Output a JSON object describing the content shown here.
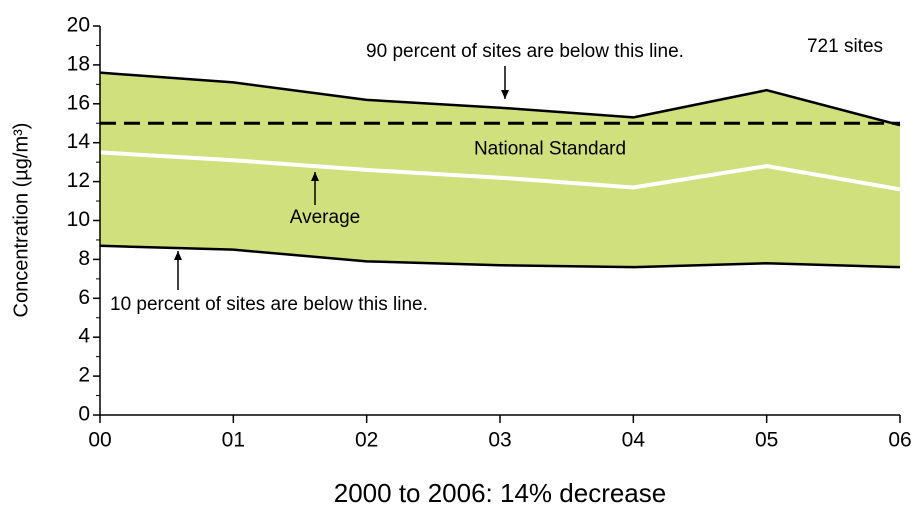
{
  "chart_data": {
    "type": "band-line",
    "title": "2000 to 2006: 14% decrease",
    "y_label": "Concentration (µg/m³)",
    "categories": [
      "00",
      "01",
      "02",
      "03",
      "04",
      "05",
      "06"
    ],
    "series": [
      {
        "color": "#000000",
        "values": [
          17.6,
          17.1,
          16.2,
          15.8,
          15.3,
          16.7,
          14.9
        ]
      },
      {
        "color": "#ffffff",
        "values": [
          13.5,
          13.1,
          12.6,
          12.2,
          11.7,
          12.8,
          11.6
        ]
      },
      {
        "color": "#000000",
        "values": [
          8.7,
          8.5,
          7.9,
          7.7,
          7.6,
          7.8,
          7.6
        ]
      }
    ],
    "band_color": "#cfe07c",
    "reference_lines": [
      {
        "value": 15,
        "label": "National Standard",
        "color": "#000000",
        "style": "dashed"
      }
    ],
    "annotations": [
      "90 percent of sites are below this line.",
      "Average",
      "10 percent of sites are below this line.",
      "721 sites"
    ],
    "ylim": [
      0,
      20
    ],
    "yticks": [
      0,
      2,
      4,
      6,
      8,
      10,
      12,
      14,
      16,
      18,
      20
    ],
    "yminor_ticks": [
      1,
      3,
      5,
      7,
      9,
      11,
      13,
      15,
      17,
      19
    ]
  }
}
